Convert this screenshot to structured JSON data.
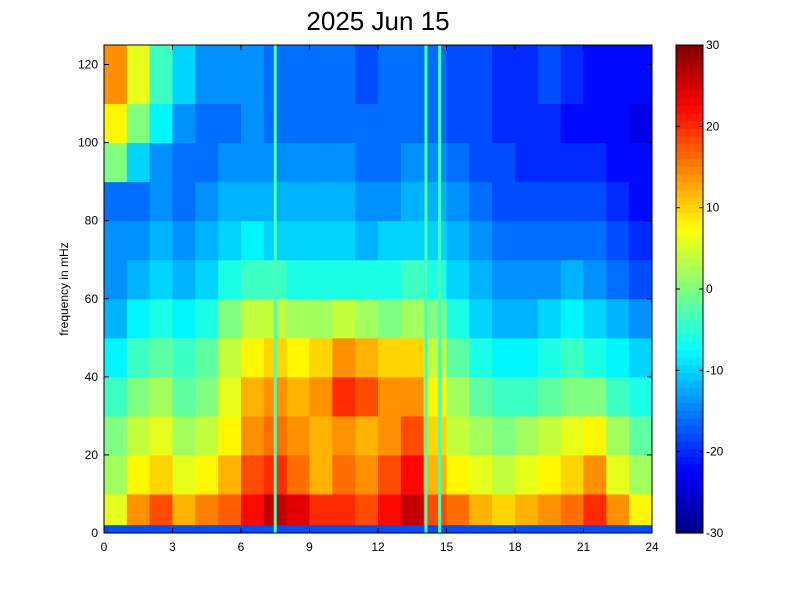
{
  "chart_data": {
    "type": "heatmap",
    "title": "2025 Jun 15",
    "xlabel": "",
    "ylabel": "frequency in mHz",
    "x_ticks": [
      "0",
      "3",
      "6",
      "9",
      "12",
      "15",
      "18",
      "21",
      "24"
    ],
    "y_ticks": [
      "0",
      "20",
      "40",
      "60",
      "80",
      "100",
      "120"
    ],
    "xlim": [
      0,
      24
    ],
    "ylim": [
      0,
      125
    ],
    "colorbar": {
      "ticks": [
        "30",
        "20",
        "10",
        "0",
        "-10",
        "-20",
        "-30"
      ],
      "range": [
        -30,
        30
      ],
      "colormap": "jet"
    },
    "time_bins": [
      0,
      1,
      2,
      3,
      4,
      5,
      6,
      7,
      8,
      9,
      10,
      11,
      12,
      13,
      14,
      15,
      16,
      17,
      18,
      19,
      20,
      21,
      22,
      23
    ],
    "freq_bands_mHz": [
      [
        0,
        10
      ],
      [
        10,
        20
      ],
      [
        20,
        30
      ],
      [
        30,
        40
      ],
      [
        40,
        50
      ],
      [
        50,
        60
      ],
      [
        60,
        70
      ],
      [
        70,
        80
      ],
      [
        80,
        90
      ],
      [
        90,
        100
      ],
      [
        100,
        110
      ],
      [
        110,
        125
      ]
    ],
    "power_db": [
      [
        6,
        14,
        18,
        12,
        15,
        17,
        22,
        26,
        24,
        20,
        20,
        18,
        22,
        26,
        18,
        16,
        12,
        10,
        12,
        14,
        16,
        20,
        14,
        8
      ],
      [
        2,
        8,
        10,
        6,
        8,
        12,
        18,
        20,
        16,
        12,
        16,
        14,
        18,
        22,
        12,
        8,
        6,
        4,
        6,
        8,
        10,
        14,
        6,
        2
      ],
      [
        0,
        4,
        6,
        2,
        4,
        8,
        14,
        16,
        14,
        12,
        14,
        12,
        14,
        18,
        10,
        4,
        2,
        0,
        2,
        4,
        6,
        8,
        2,
        -2
      ],
      [
        -4,
        0,
        2,
        -2,
        0,
        6,
        12,
        14,
        12,
        14,
        20,
        18,
        14,
        14,
        8,
        2,
        -2,
        -4,
        -4,
        -2,
        0,
        0,
        -4,
        -6
      ],
      [
        -8,
        -4,
        -2,
        -4,
        -2,
        4,
        8,
        10,
        8,
        10,
        14,
        12,
        10,
        10,
        4,
        -2,
        -6,
        -8,
        -8,
        -6,
        -4,
        -6,
        -8,
        -10
      ],
      [
        -12,
        -8,
        -6,
        -8,
        -6,
        0,
        4,
        4,
        2,
        2,
        4,
        2,
        0,
        2,
        0,
        -6,
        -10,
        -12,
        -12,
        -10,
        -8,
        -10,
        -12,
        -14
      ],
      [
        -14,
        -12,
        -10,
        -12,
        -10,
        -6,
        -4,
        -4,
        -6,
        -6,
        -6,
        -6,
        -6,
        -4,
        -6,
        -10,
        -12,
        -14,
        -14,
        -14,
        -12,
        -14,
        -16,
        -18
      ],
      [
        -14,
        -14,
        -12,
        -14,
        -12,
        -10,
        -8,
        -10,
        -10,
        -10,
        -10,
        -12,
        -10,
        -10,
        -10,
        -12,
        -14,
        -16,
        -16,
        -16,
        -16,
        -16,
        -18,
        -20
      ],
      [
        -16,
        -16,
        -14,
        -16,
        -14,
        -12,
        -12,
        -12,
        -12,
        -12,
        -12,
        -14,
        -14,
        -12,
        -12,
        -14,
        -16,
        -18,
        -18,
        -18,
        -18,
        -18,
        -20,
        -22
      ],
      [
        0,
        -10,
        -14,
        -16,
        -16,
        -14,
        -14,
        -14,
        -14,
        -14,
        -14,
        -16,
        -16,
        -14,
        -14,
        -16,
        -18,
        -18,
        -20,
        -20,
        -20,
        -20,
        -22,
        -22
      ],
      [
        8,
        0,
        -8,
        -14,
        -16,
        -16,
        -14,
        -16,
        -16,
        -16,
        -16,
        -16,
        -16,
        -16,
        -16,
        -18,
        -18,
        -20,
        -20,
        -20,
        -22,
        -22,
        -22,
        -24
      ],
      [
        14,
        6,
        -4,
        -10,
        -14,
        -14,
        -14,
        -16,
        -16,
        -16,
        -16,
        -18,
        -16,
        -16,
        -16,
        -18,
        -18,
        -20,
        -20,
        -18,
        -20,
        -22,
        -22,
        -22
      ]
    ],
    "vertical_lines_hours": [
      7.5,
      14.1,
      14.7
    ],
    "baseline_band_mHz": [
      0,
      2
    ]
  }
}
